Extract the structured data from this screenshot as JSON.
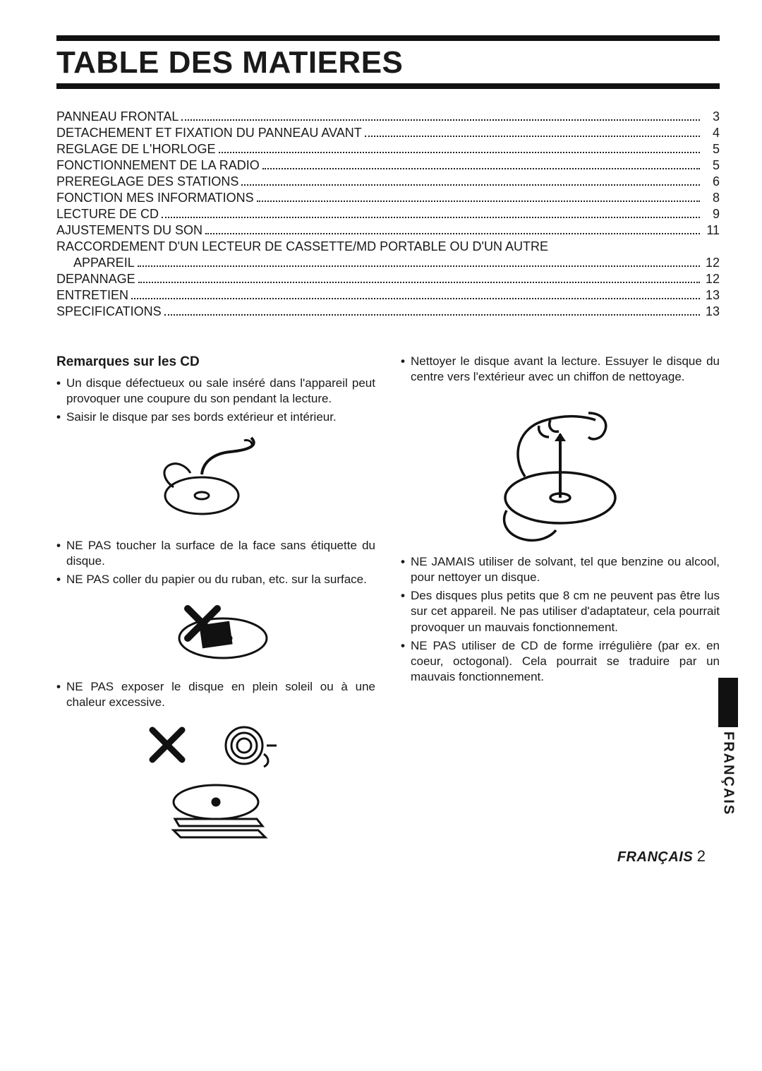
{
  "title": "TABLE DES MATIERES",
  "toc": [
    {
      "label": "PANNEAU FRONTAL",
      "page": "3",
      "indent": false
    },
    {
      "label": "DETACHEMENT ET FIXATION DU PANNEAU AVANT",
      "page": "4",
      "indent": false
    },
    {
      "label": "REGLAGE DE L'HORLOGE",
      "page": "5",
      "indent": false
    },
    {
      "label": "FONCTIONNEMENT DE LA RADIO",
      "page": "5",
      "indent": false
    },
    {
      "label": "PREREGLAGE DES STATIONS",
      "page": "6",
      "indent": false
    },
    {
      "label": "FONCTION MES INFORMATIONS",
      "page": "8",
      "indent": false
    },
    {
      "label": "LECTURE DE CD",
      "page": "9",
      "indent": false
    },
    {
      "label": "AJUSTEMENTS DU SON",
      "page": "11",
      "indent": false
    },
    {
      "label": "RACCORDEMENT D'UN LECTEUR DE CASSETTE/MD PORTABLE OU D'UN AUTRE",
      "page": "",
      "indent": false
    },
    {
      "label": "APPAREIL",
      "page": "12",
      "indent": true
    },
    {
      "label": "DEPANNAGE",
      "page": "12",
      "indent": false
    },
    {
      "label": "ENTRETIEN",
      "page": "13",
      "indent": false
    },
    {
      "label": "SPECIFICATIONS",
      "page": "13",
      "indent": false
    }
  ],
  "subhead": "Remarques sur les CD",
  "left": {
    "b1": "Un disque défectueux ou sale inséré dans l'appareil peut provoquer une coupure du son pendant la lecture.",
    "b2": "Saisir le disque par ses bords extérieur et intérieur.",
    "b3": "NE PAS toucher la surface de la face sans étiquette du disque.",
    "b4": "NE PAS coller du papier ou du ruban, etc. sur la surface.",
    "b5": "NE PAS exposer le disque en plein soleil ou à une chaleur excessive."
  },
  "right": {
    "b1": "Nettoyer le disque avant la lecture. Essuyer le disque du centre vers l'extérieur avec un chiffon de nettoyage.",
    "b2": "NE JAMAIS utiliser de solvant, tel que benzine ou alcool, pour nettoyer un disque.",
    "b3": "Des disques plus petits que 8 cm ne peuvent pas être lus sur cet appareil. Ne pas utiliser d'adaptateur, cela pourrait provoquer un mauvais fonctionnement.",
    "b4": "NE PAS utiliser de CD de forme irrégulière (par ex. en coeur, octogonal). Cela pourrait se traduire par un mauvais fonctionnement."
  },
  "sideTab": "FRANÇAIS",
  "footer": {
    "lang": "FRANÇAIS",
    "page": "2"
  },
  "colors": {
    "ink": "#1a1a1a",
    "rule": "#111111",
    "bg": "#ffffff"
  }
}
